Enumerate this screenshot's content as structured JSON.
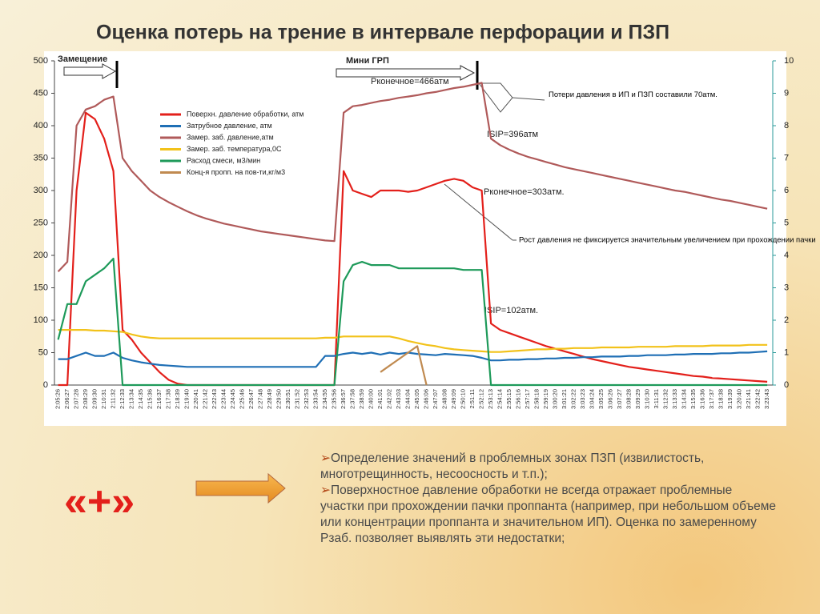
{
  "title": "Оценка  потерь на трение в интервале перфорации и ПЗП",
  "plus": "«+»",
  "bullets": [
    "Определение значений в проблемных зонах ПЗП (извилистость, многотрещинность,  несоосность и т.п.);",
    "Поверхностное давление обработки не всегда отражает проблемные участки при прохождении  пачки проппанта (например, при небольшом объеме или концентрации проппанта и значительном ИП). Оценка по замеренному Рзаб. позволяет выявлять эти недостатки;"
  ],
  "chart_data": {
    "type": "line",
    "annotations": [
      "Замещение",
      "Мини ГРП",
      "Pконечное=466атм",
      "Потери давления в ИП и ПЗП составили 70атм.",
      "ISIP=396атм",
      "Pконечное=303атм.",
      "Рост давления не фиксируется значительным увеличением при прохождении пачки",
      "ISIP=102атм."
    ],
    "categories": [
      "2:05:26",
      "2:06:27",
      "2:07:28",
      "2:08:29",
      "2:09:30",
      "2:10:31",
      "2:11:32",
      "2:12:33",
      "2:13:34",
      "2:14:35",
      "2:15:36",
      "2:16:37",
      "2:17:38",
      "2:18:39",
      "2:19:40",
      "2:20:41",
      "2:21:42",
      "2:22:43",
      "2:23:44",
      "2:24:45",
      "2:25:46",
      "2:26:47",
      "2:27:48",
      "2:28:49",
      "2:29:50",
      "2:30:51",
      "2:31:52",
      "2:32:53",
      "2:33:54",
      "2:34:55",
      "2:35:56",
      "2:36:57",
      "2:37:58",
      "2:38:59",
      "2:40:00",
      "2:41:01",
      "2:42:02",
      "2:43:03",
      "2:44:04",
      "2:45:05",
      "2:46:06",
      "2:47:07",
      "2:48:08",
      "2:49:09",
      "2:50:10",
      "2:51:11",
      "2:52:12",
      "2:53:13",
      "2:54:14",
      "2:55:15",
      "2:56:16",
      "2:57:17",
      "2:58:18",
      "2:59:19",
      "3:00:20",
      "3:01:21",
      "3:02:22",
      "3:03:23",
      "3:04:24",
      "3:05:25",
      "3:06:26",
      "3:07:27",
      "3:08:28",
      "3:09:29",
      "3:10:30",
      "3:11:31",
      "3:12:32",
      "3:13:33",
      "3:14:34",
      "3:15:35",
      "3:16:36",
      "3:17:37",
      "3:18:38",
      "3:19:39",
      "3:20:40",
      "3:21:41",
      "3:22:42",
      "3:23:43"
    ],
    "ylim": [
      0,
      500
    ],
    "yticks": [
      0,
      50,
      100,
      150,
      200,
      250,
      300,
      350,
      400,
      450,
      500
    ],
    "y2lim": [
      0,
      10
    ],
    "y2ticks": [
      0,
      1,
      2,
      3,
      4,
      5,
      6,
      7,
      8,
      9,
      10
    ],
    "series": [
      {
        "name": "Поверхн. давление обработки, атм",
        "color": "#e3201b",
        "values": [
          0,
          0,
          300,
          420,
          410,
          380,
          330,
          85,
          70,
          50,
          35,
          20,
          8,
          2,
          0,
          0,
          0,
          0,
          0,
          0,
          0,
          0,
          0,
          0,
          0,
          0,
          0,
          0,
          0,
          0,
          0,
          330,
          300,
          295,
          290,
          300,
          300,
          300,
          298,
          300,
          305,
          310,
          315,
          318,
          315,
          305,
          300,
          95,
          85,
          80,
          75,
          70,
          65,
          60,
          56,
          52,
          48,
          44,
          40,
          37,
          34,
          31,
          28,
          26,
          24,
          22,
          20,
          18,
          16,
          14,
          13,
          11,
          10,
          9,
          8,
          7,
          6,
          5
        ]
      },
      {
        "name": "Затрубное давление, атм",
        "color": "#1f6fb5",
        "values": [
          40,
          40,
          45,
          50,
          45,
          45,
          50,
          42,
          38,
          35,
          33,
          31,
          30,
          29,
          28,
          28,
          28,
          28,
          28,
          28,
          28,
          28,
          28,
          28,
          28,
          28,
          28,
          28,
          28,
          45,
          45,
          48,
          50,
          48,
          50,
          47,
          50,
          48,
          50,
          48,
          47,
          46,
          48,
          47,
          46,
          45,
          42,
          38,
          38,
          39,
          39,
          40,
          40,
          41,
          41,
          42,
          42,
          43,
          43,
          44,
          44,
          44,
          45,
          45,
          46,
          46,
          46,
          47,
          47,
          48,
          48,
          48,
          49,
          49,
          50,
          50,
          51,
          52
        ]
      },
      {
        "name": "Замер. заб. давление,атм",
        "color": "#b05a5a",
        "values": [
          175,
          190,
          400,
          425,
          430,
          440,
          445,
          350,
          330,
          315,
          300,
          290,
          282,
          275,
          268,
          262,
          257,
          253,
          249,
          246,
          243,
          240,
          237,
          235,
          233,
          231,
          229,
          227,
          225,
          223,
          222,
          420,
          430,
          432,
          435,
          438,
          440,
          443,
          445,
          447,
          450,
          452,
          455,
          458,
          460,
          463,
          466,
          380,
          370,
          363,
          357,
          352,
          348,
          344,
          340,
          336,
          333,
          330,
          327,
          324,
          321,
          318,
          315,
          312,
          309,
          306,
          303,
          300,
          298,
          295,
          292,
          289,
          286,
          284,
          281,
          278,
          275,
          272
        ]
      },
      {
        "name": "Замер. заб. температура,0С",
        "color": "#f2c21a",
        "values": [
          85,
          85,
          85,
          85,
          84,
          84,
          83,
          82,
          78,
          75,
          73,
          72,
          72,
          72,
          72,
          72,
          72,
          72,
          72,
          72,
          72,
          72,
          72,
          72,
          72,
          72,
          72,
          72,
          72,
          73,
          73,
          75,
          75,
          75,
          75,
          75,
          75,
          72,
          68,
          65,
          62,
          60,
          57,
          55,
          54,
          53,
          52,
          51,
          51,
          52,
          53,
          54,
          55,
          55,
          56,
          56,
          57,
          57,
          57,
          58,
          58,
          58,
          58,
          59,
          59,
          59,
          59,
          60,
          60,
          60,
          60,
          61,
          61,
          61,
          61,
          62,
          62,
          62
        ]
      },
      {
        "name": "Расход смеси, м3/мин",
        "color": "#1e9a5a",
        "axis": "y2",
        "values": [
          1.4,
          2.5,
          2.5,
          3.2,
          3.4,
          3.6,
          3.9,
          0,
          0,
          0,
          0,
          0,
          0,
          0,
          0,
          0,
          0,
          0,
          0,
          0,
          0,
          0,
          0,
          0,
          0,
          0,
          0,
          0,
          0,
          0,
          0,
          3.2,
          3.7,
          3.8,
          3.7,
          3.7,
          3.7,
          3.6,
          3.6,
          3.6,
          3.6,
          3.6,
          3.6,
          3.6,
          3.55,
          3.55,
          3.55,
          0,
          0,
          0,
          0,
          0,
          0,
          0,
          0,
          0,
          0,
          0,
          0,
          0,
          0,
          0,
          0,
          0,
          0,
          0,
          0,
          0,
          0,
          0,
          0,
          0,
          0,
          0,
          0,
          0,
          0,
          0
        ]
      },
      {
        "name": "Конц-я пропп. на пов-ти,кг/м3",
        "color": "#c08a50",
        "axis": "y2",
        "values": [
          null,
          null,
          null,
          null,
          null,
          null,
          null,
          null,
          null,
          null,
          null,
          null,
          null,
          null,
          null,
          null,
          null,
          null,
          null,
          null,
          null,
          null,
          null,
          null,
          null,
          null,
          null,
          null,
          null,
          null,
          null,
          null,
          null,
          null,
          null,
          0.4,
          0.6,
          0.8,
          1.0,
          1.2,
          0,
          null,
          null,
          null,
          null,
          null,
          null,
          null,
          null,
          null,
          null,
          null,
          null,
          null,
          null,
          null,
          null,
          null,
          null,
          null,
          null,
          null,
          null,
          null,
          null,
          null,
          null,
          null,
          null,
          null,
          null,
          null,
          null,
          null,
          null,
          null,
          null,
          null
        ]
      }
    ]
  }
}
